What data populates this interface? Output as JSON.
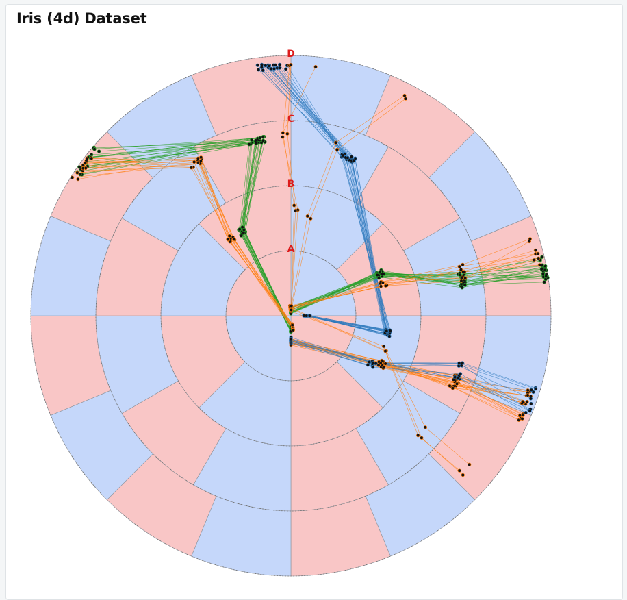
{
  "title": "Iris (4d) Dataset",
  "colors": {
    "sector_a": "#c5d7fa",
    "sector_b": "#f9c6c6",
    "level_label": "#dd1c1c",
    "point": "#111111",
    "series": [
      "#2f7abd",
      "#2ca02c",
      "#ff7f0e"
    ]
  },
  "chart_data": {
    "type": "radial-parallel-coordinates",
    "levels": [
      "A",
      "B",
      "C",
      "D"
    ],
    "series": [
      {
        "color": "#2f7abd",
        "count": 20,
        "path": [
          [
            90,
            0.25
          ],
          [
            100,
            0.5
          ],
          [
            20,
            0.57
          ],
          [
            356,
            0.84
          ]
        ]
      },
      {
        "color": "#2ca02c",
        "count": 20,
        "path": [
          [
            180,
            0.2
          ],
          [
            330,
            0.5
          ],
          [
            349,
            0.75
          ],
          [
            307,
            0.93
          ]
        ]
      },
      {
        "color": "#ff7f0e",
        "count": 12,
        "path": [
          [
            171,
            0.18
          ],
          [
            322,
            0.5
          ],
          [
            328,
            0.76
          ],
          [
            305,
            0.93
          ]
        ]
      },
      {
        "color": "#2ca02c",
        "count": 22,
        "path": [
          [
            358,
            0.08
          ],
          [
            65,
            0.52
          ],
          [
            78,
            0.7
          ],
          [
            79,
            0.95
          ]
        ]
      },
      {
        "color": "#ff7f0e",
        "count": 8,
        "path": [
          [
            355,
            0.12
          ],
          [
            71,
            0.5
          ],
          [
            76,
            0.72
          ],
          [
            75,
            0.89
          ]
        ]
      },
      {
        "color": "#ff7f0e",
        "count": 18,
        "path": [
          [
            180,
            0.4
          ],
          [
            118,
            0.58
          ],
          [
            112,
            0.72
          ],
          [
            111,
            0.85
          ]
        ]
      },
      {
        "color": "#2f7abd",
        "count": 10,
        "path": [
          [
            180,
            0.38
          ],
          [
            121,
            0.45
          ],
          [
            108,
            0.73
          ],
          [
            110,
            0.92
          ]
        ]
      },
      {
        "color": "#ff7f0e",
        "count": 3,
        "path": [
          [
            0,
            0.1
          ],
          [
            110,
            0.55
          ],
          [
            132,
            0.7
          ],
          [
            130,
            0.57
          ]
        ]
      },
      {
        "color": "#ff7f0e",
        "count": 3,
        "path": [
          [
            2,
            0.12
          ],
          [
            2,
            0.66
          ],
          [
            0,
            0.78
          ],
          [
            3,
            0.85
          ]
        ]
      },
      {
        "color": "#ff7f0e",
        "count": 2,
        "path": [
          [
            3,
            0.14
          ],
          [
            10,
            0.55
          ],
          [
            15,
            0.7
          ],
          [
            25,
            0.76
          ]
        ]
      }
    ]
  }
}
